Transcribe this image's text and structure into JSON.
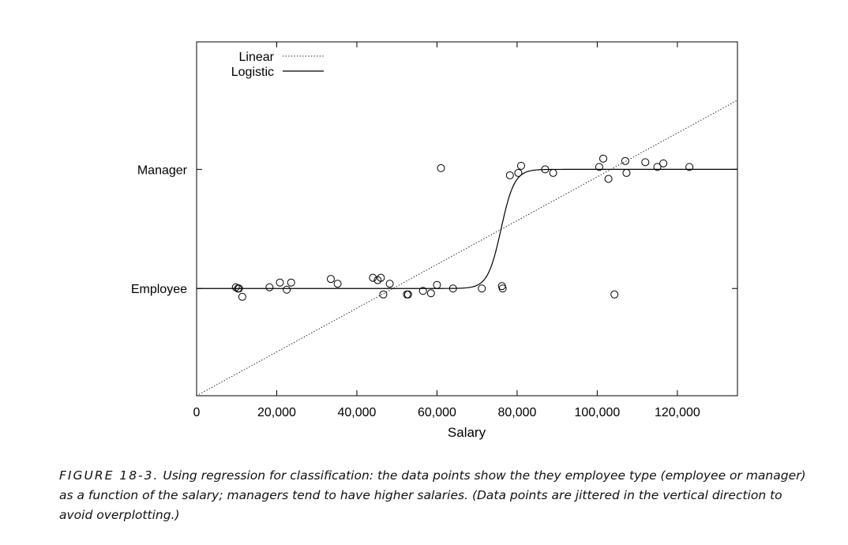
{
  "chart_data": {
    "type": "scatter",
    "xlabel": "Salary",
    "ylabel": "",
    "xlim": [
      0,
      135000
    ],
    "ylim": [
      -0.9,
      2.07
    ],
    "x_ticks": [
      0,
      20000,
      40000,
      60000,
      80000,
      100000,
      120000
    ],
    "x_tick_labels": [
      "0",
      "20,000",
      "40,000",
      "60,000",
      "80,000",
      "100,000",
      "120,000"
    ],
    "y_ticks": [
      0,
      1
    ],
    "y_tick_labels": [
      "Employee",
      "Manager"
    ],
    "grid": false,
    "legend_position": "top-left",
    "series": [
      {
        "name": "data",
        "style": "open-circle",
        "x": [
          9800,
          10300,
          10600,
          11400,
          18200,
          20800,
          22500,
          23600,
          33500,
          35200,
          44000,
          45200,
          46000,
          46600,
          48200,
          52500,
          52800,
          56500,
          58500,
          60000,
          61000,
          64000,
          71200,
          76200,
          76400,
          78200,
          80300,
          81000,
          87000,
          89000,
          100500,
          101500,
          102800,
          104300,
          107000,
          107300,
          112000,
          115000,
          116500,
          123000
        ],
        "y": [
          0.01,
          0.0,
          0.0,
          -0.07,
          0.01,
          0.05,
          -0.01,
          0.05,
          0.08,
          0.04,
          0.09,
          0.07,
          0.09,
          -0.05,
          0.04,
          -0.05,
          -0.05,
          -0.02,
          -0.04,
          0.03,
          1.01,
          0.0,
          0.0,
          0.02,
          0.0,
          0.95,
          0.97,
          1.03,
          1.0,
          0.97,
          1.02,
          1.09,
          0.92,
          -0.05,
          1.07,
          0.97,
          1.06,
          1.02,
          1.05,
          1.02
        ]
      },
      {
        "name": "Linear",
        "style": "dotted-line",
        "x": [
          0,
          135000
        ],
        "y": [
          -0.9,
          1.58
        ]
      },
      {
        "name": "Logistic",
        "style": "solid-line",
        "function": "logistic",
        "midpoint": 76000,
        "steepness": 0.0006,
        "x_range": [
          0,
          135000
        ]
      }
    ]
  },
  "caption": {
    "figure_label": "FIGURE 18-3.",
    "text": " Using regression for classification: the data points show the they employee type (employee or manager) as a function of the salary; managers tend to have higher salaries. (Data points are jittered in the vertical direction to avoid overplotting.)"
  }
}
